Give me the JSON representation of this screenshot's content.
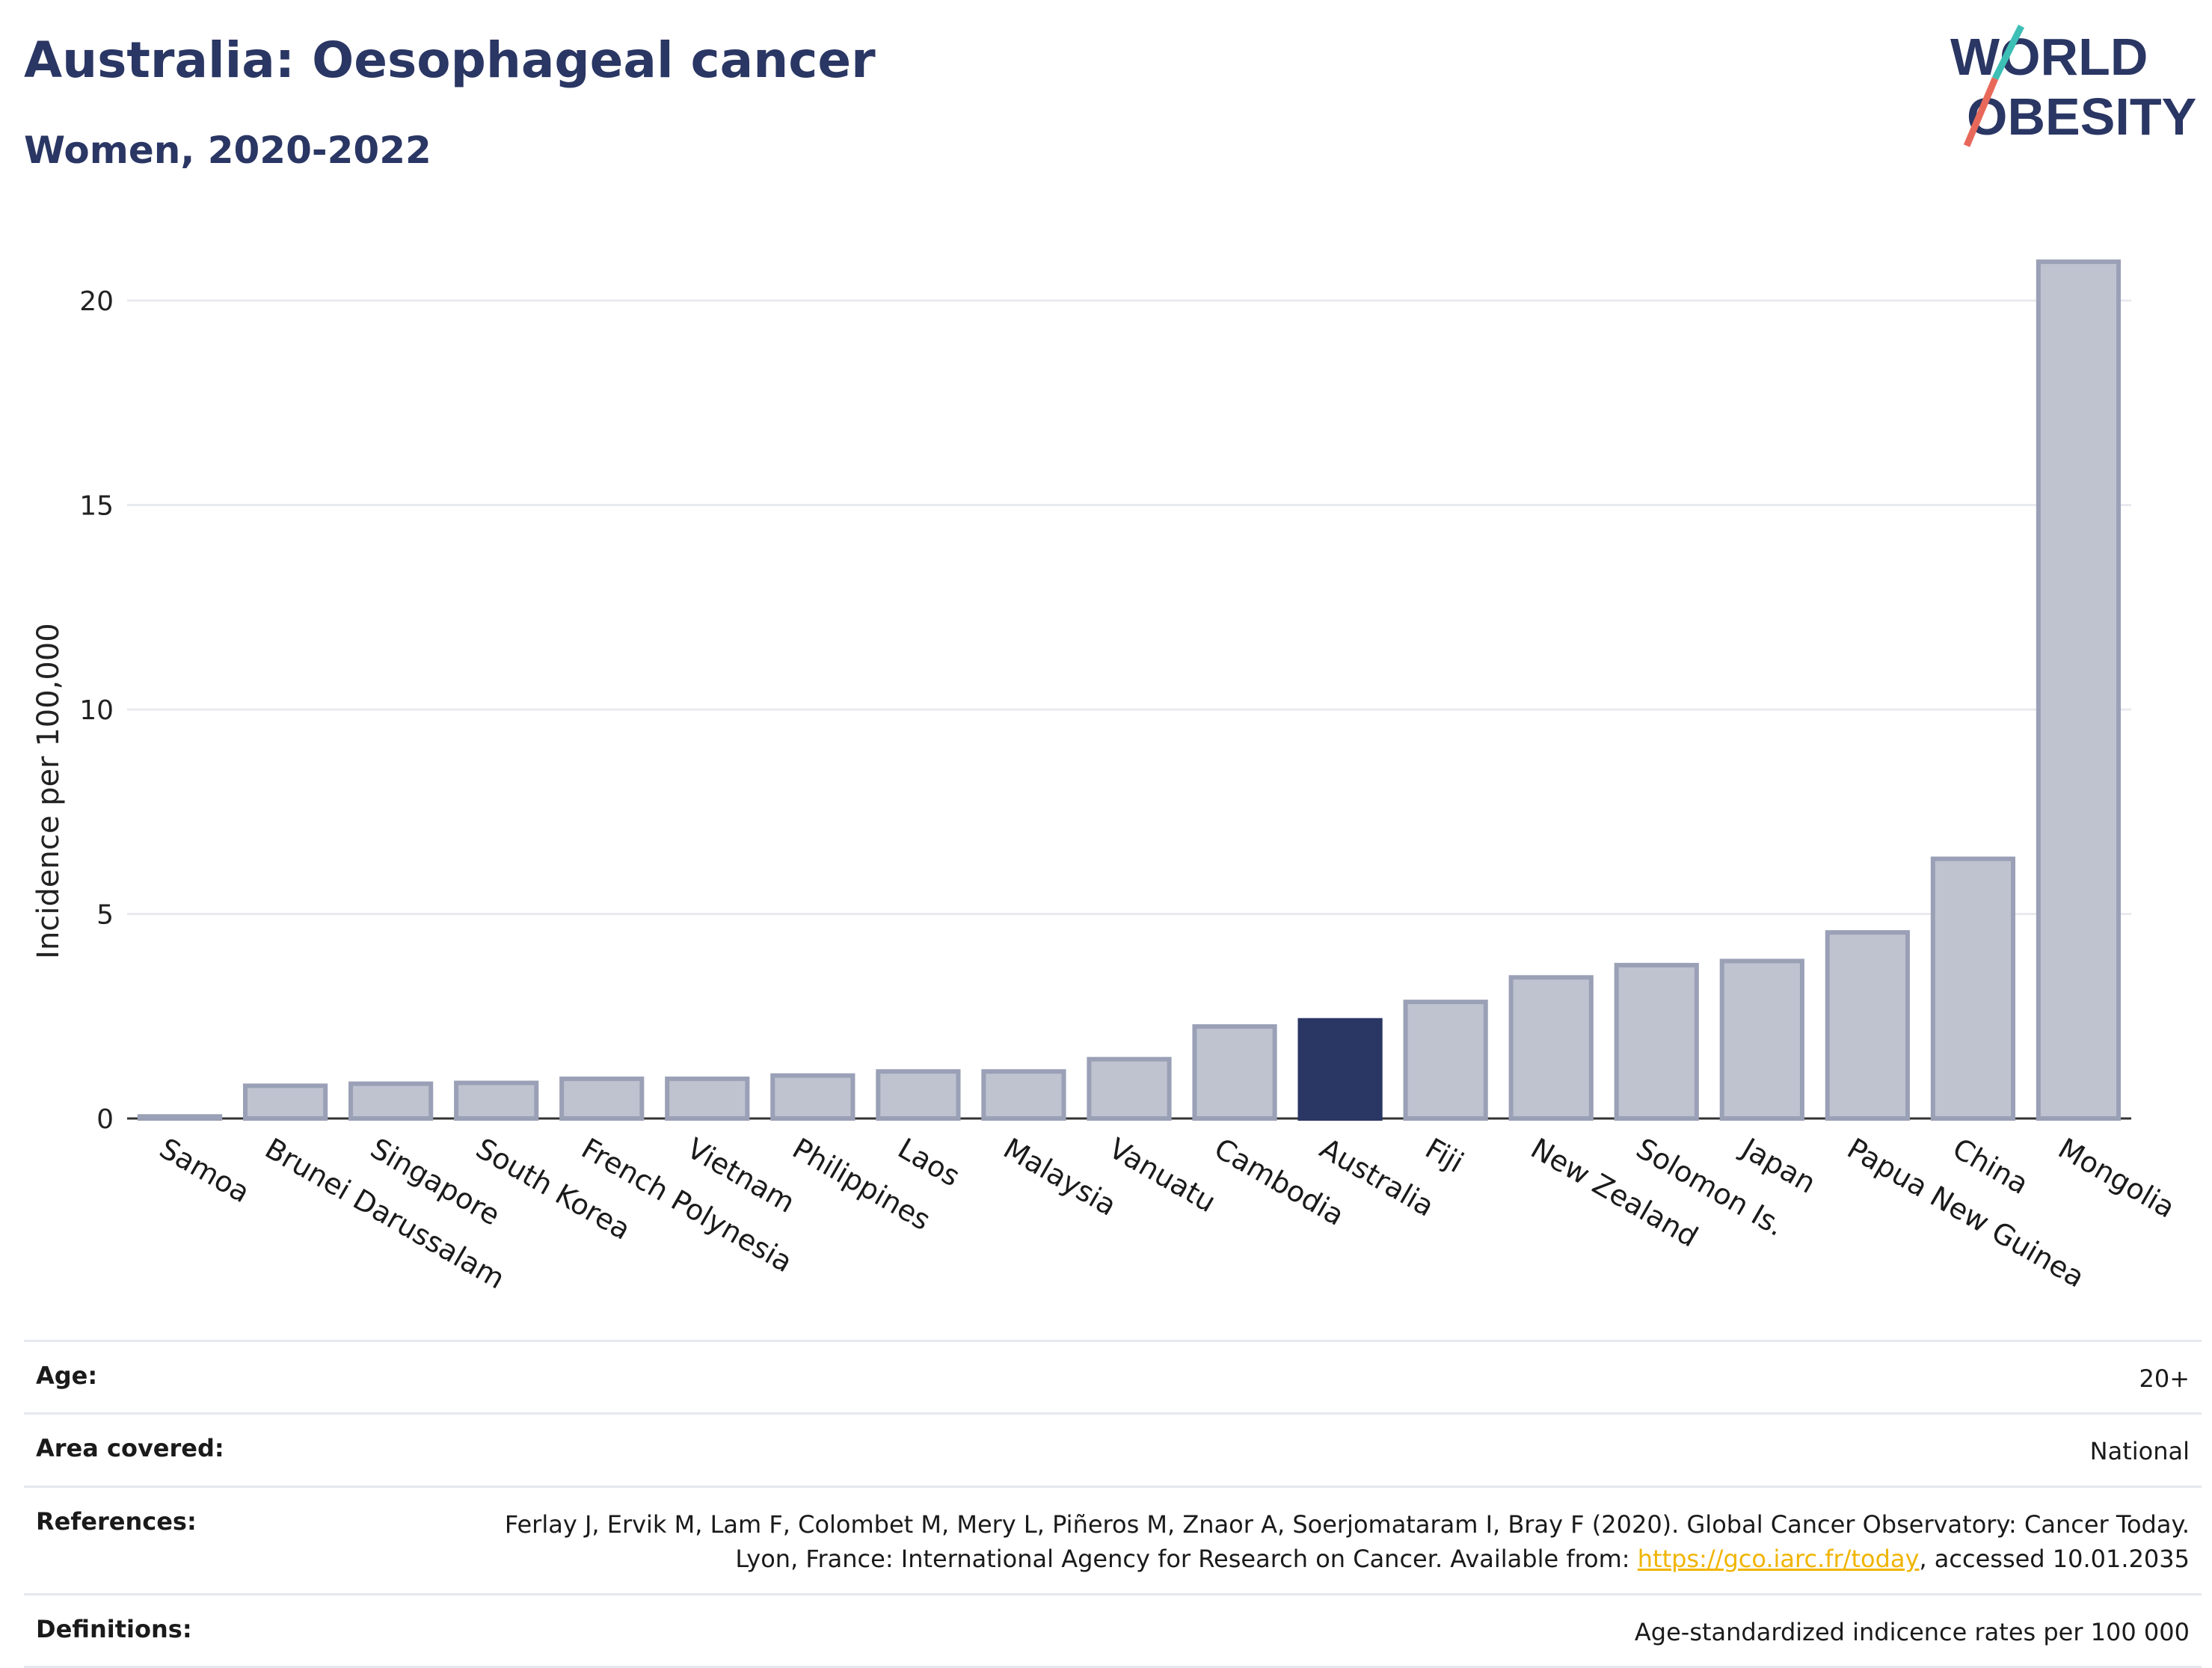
{
  "header": {
    "title": "Australia: Oesophageal cancer",
    "subtitle": "Women, 2020-2022"
  },
  "logo": {
    "line1": "WORLD",
    "line2": "OBESITY",
    "colors": {
      "text": "#2a3663",
      "slash_top": "#3dbfb5",
      "slash_bottom": "#e8695a"
    }
  },
  "chart_data": {
    "type": "bar",
    "title": "Australia: Oesophageal cancer",
    "subtitle": "Women, 2020-2022",
    "xlabel": "",
    "ylabel": "Incidence per 100,000",
    "ylim": [
      0,
      21.5
    ],
    "yticks": [
      0,
      5,
      10,
      15,
      20
    ],
    "grid": true,
    "highlight": "Australia",
    "colors": {
      "bar": "#bfc3d0",
      "bar_border": "#9aa0b6",
      "highlight": "#2a3663",
      "grid": "#e8eaf0",
      "axis": "#333333"
    },
    "categories": [
      "Samoa",
      "Brunei Darussalam",
      "Singapore",
      "South Korea",
      "French Polynesia",
      "Vietnam",
      "Philippines",
      "Laos",
      "Malaysia",
      "Vanuatu",
      "Cambodia",
      "Australia",
      "Fiji",
      "New Zealand",
      "Solomon Is.",
      "Japan",
      "Papua New Guinea",
      "China",
      "Mongolia"
    ],
    "values": [
      0.05,
      0.8,
      0.85,
      0.87,
      0.97,
      0.97,
      1.05,
      1.15,
      1.15,
      1.45,
      2.25,
      2.4,
      2.85,
      3.45,
      3.75,
      3.85,
      4.55,
      6.35,
      20.95
    ]
  },
  "meta": {
    "age_label": "Age:",
    "age_value": "20+",
    "area_label": "Area covered:",
    "area_value": "National",
    "references_label": "References:",
    "references_text": "Ferlay J, Ervik M, Lam F, Colombet M, Mery L, Piñeros M, Znaor A, Soerjomataram I, Bray F (2020). Global Cancer Observatory: Cancer Today. Lyon, France: International Agency for Research on Cancer. Available from: ",
    "references_link": "https://gco.iarc.fr/today",
    "references_suffix": ", accessed 10.01.2035",
    "definitions_label": "Definitions:",
    "definitions_value": "Age-standardized indicence rates per 100 000"
  }
}
